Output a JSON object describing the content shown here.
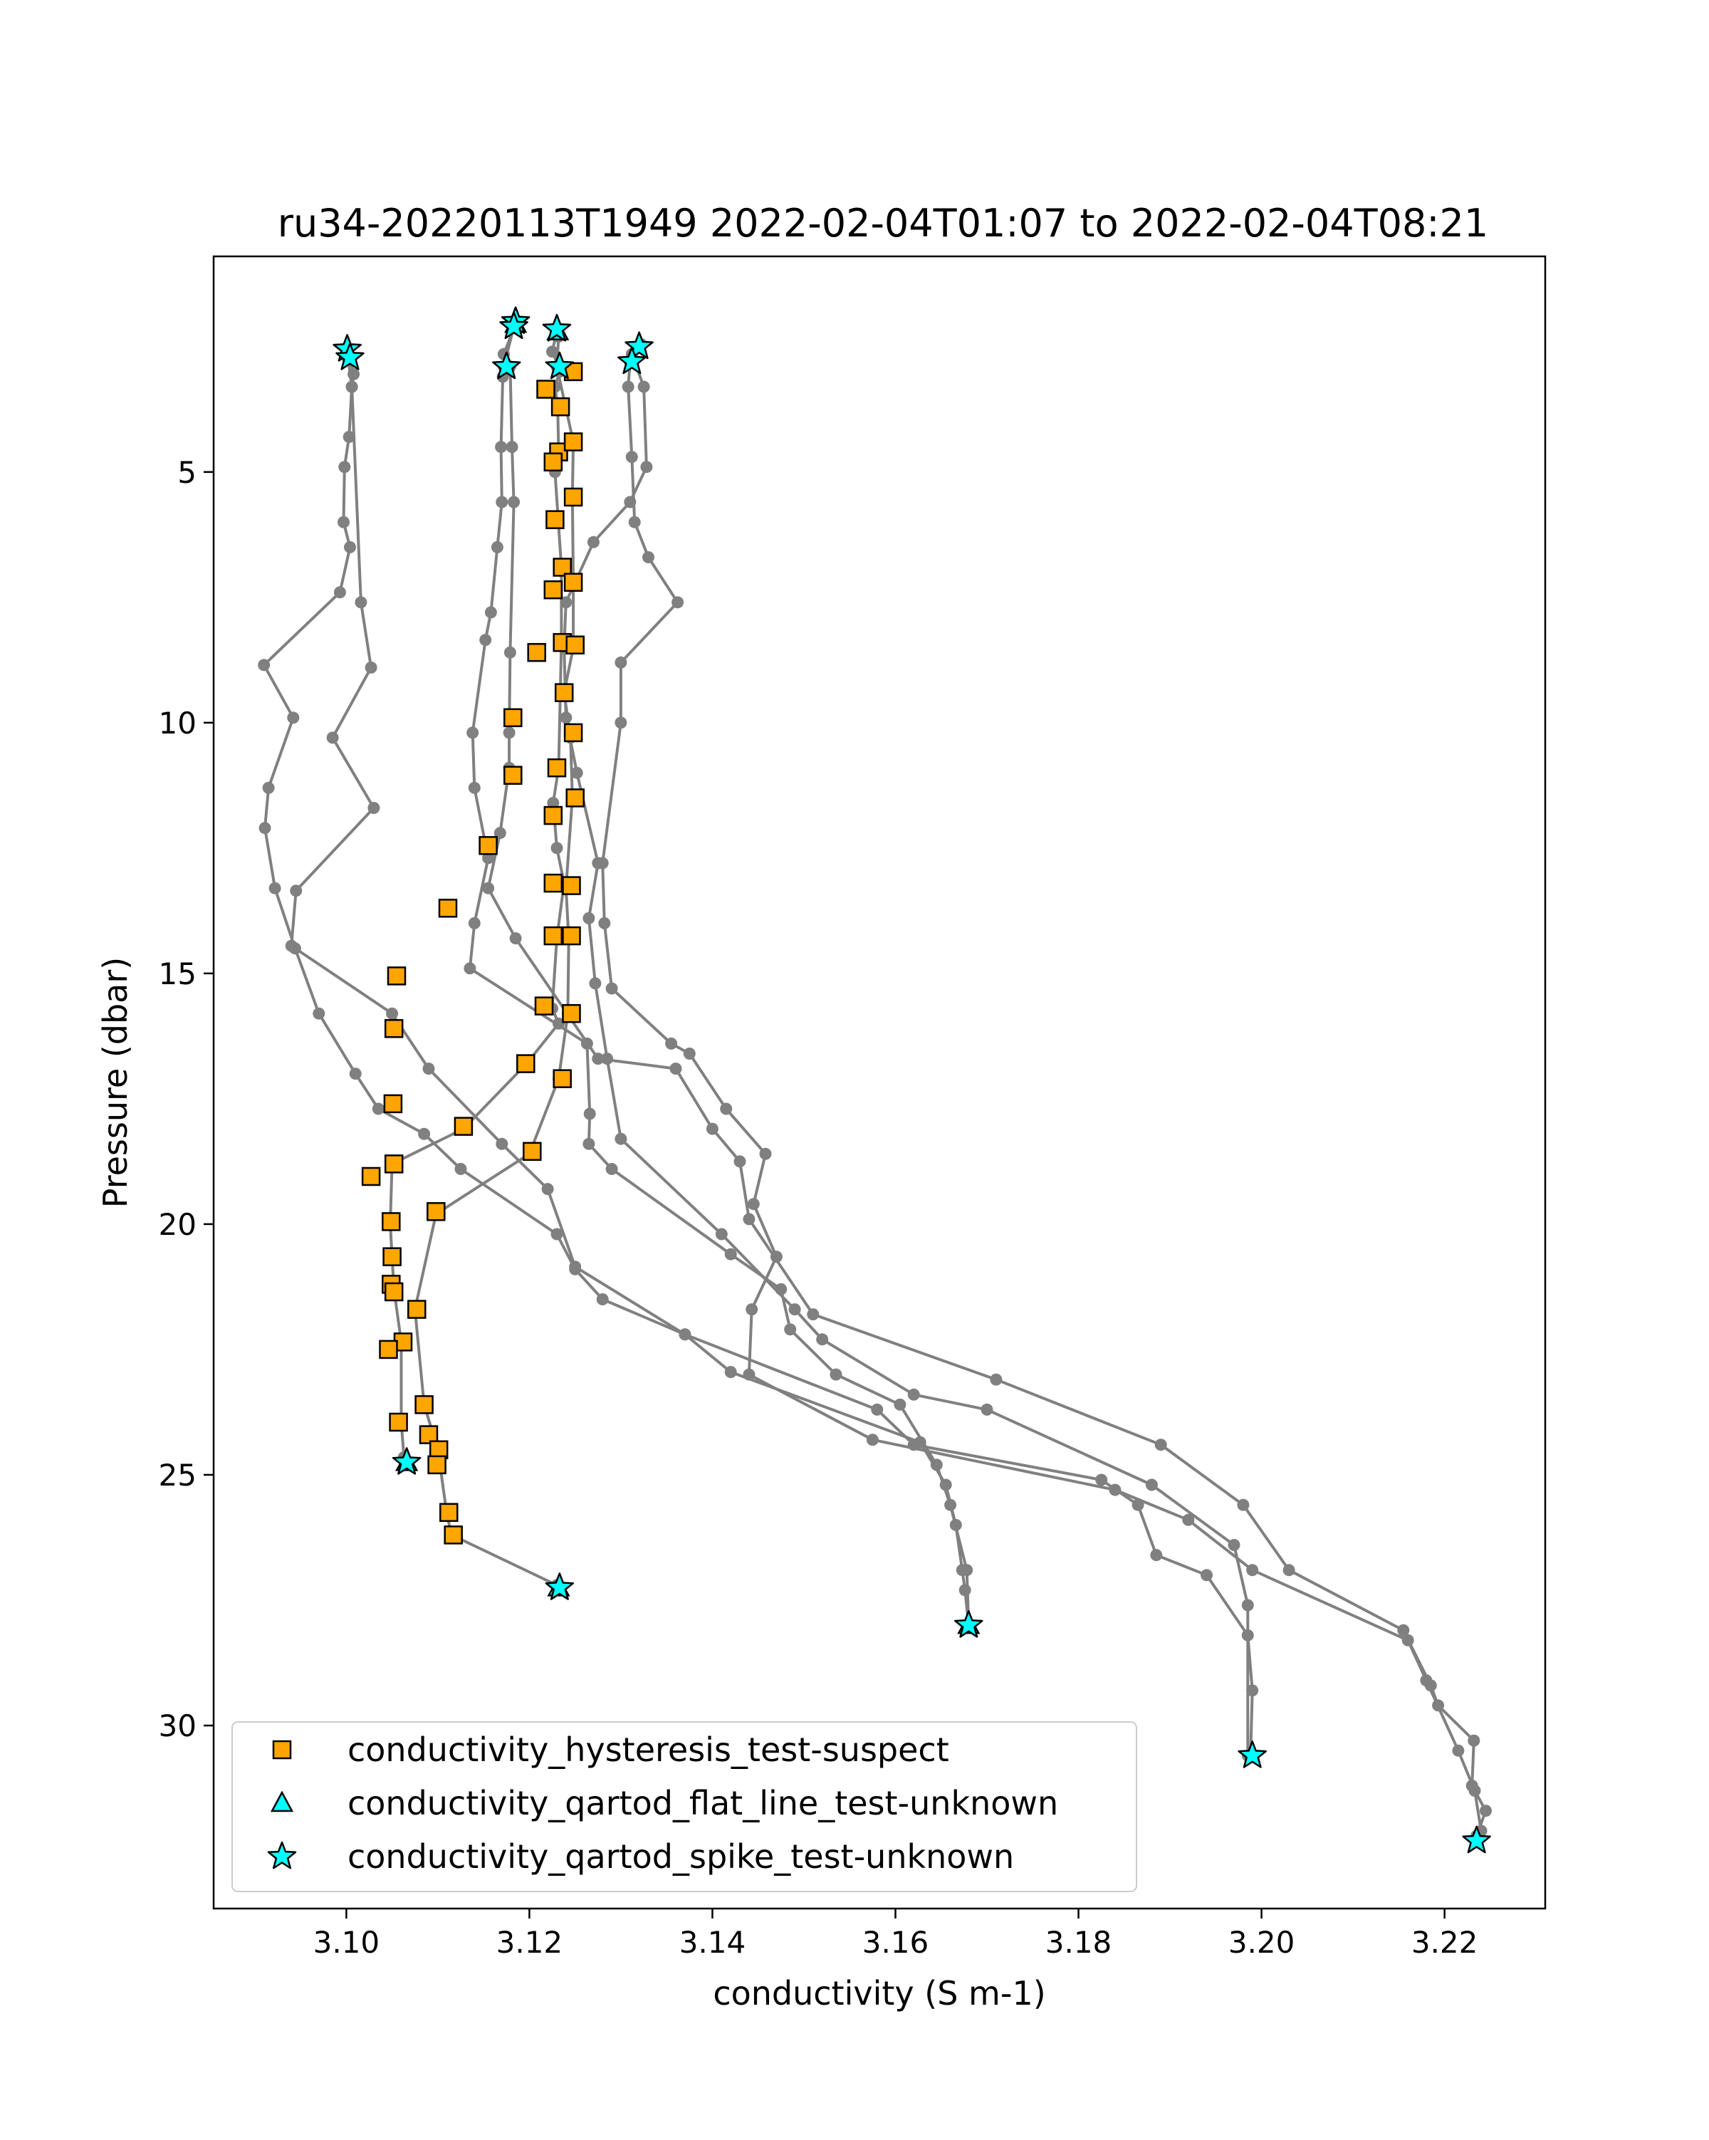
{
  "chart_data": {
    "type": "line",
    "title": "ru34-20220113T1949 2022-02-04T01:07 to 2022-02-04T08:21",
    "xlabel": "conductivity (S m-1)",
    "ylabel": "Pressure (dbar)",
    "xlim": [
      3.0855,
      3.231
    ],
    "ylim": [
      33.65,
      0.7
    ],
    "y_inverted": true,
    "grid": false,
    "legend_position": "lower left",
    "x_ticks": [
      {
        "value": 3.1,
        "label": "3.10"
      },
      {
        "value": 3.12,
        "label": "3.12"
      },
      {
        "value": 3.14,
        "label": "3.14"
      },
      {
        "value": 3.16,
        "label": "3.16"
      },
      {
        "value": 3.18,
        "label": "3.18"
      },
      {
        "value": 3.2,
        "label": "3.20"
      },
      {
        "value": 3.22,
        "label": "3.22"
      }
    ],
    "y_ticks": [
      {
        "value": 5,
        "label": "5"
      },
      {
        "value": 10,
        "label": "10"
      },
      {
        "value": 15,
        "label": "15"
      },
      {
        "value": 20,
        "label": "20"
      },
      {
        "value": 25,
        "label": "25"
      },
      {
        "value": 30,
        "label": "30"
      }
    ],
    "colors": {
      "profile_line": "#808080",
      "hysteresis_suspect": "#FFA500",
      "flat_line_unknown": "#00FFFF",
      "spike_unknown": "#00FFFF",
      "marker_edge": "#000000"
    },
    "profiles": [
      [
        [
          3.1001,
          2.55
        ],
        [
          3.1004,
          2.72
        ],
        [
          3.1008,
          3.05
        ],
        [
          3.1006,
          3.3
        ],
        [
          3.1003,
          4.3
        ],
        [
          3.0998,
          4.9
        ],
        [
          3.0997,
          6.0
        ],
        [
          3.1004,
          6.5
        ],
        [
          3.0993,
          7.4
        ],
        [
          3.091,
          8.85
        ],
        [
          3.0942,
          9.9
        ],
        [
          3.0915,
          11.3
        ],
        [
          3.0911,
          12.1
        ],
        [
          3.0922,
          13.3
        ],
        [
          3.0944,
          14.5
        ],
        [
          3.097,
          15.8
        ],
        [
          3.101,
          17.0
        ],
        [
          3.1035,
          17.7
        ],
        [
          3.1085,
          18.2
        ],
        [
          3.1125,
          18.9
        ],
        [
          3.123,
          20.2
        ],
        [
          3.125,
          20.9
        ],
        [
          3.128,
          21.5
        ],
        [
          3.137,
          22.2
        ],
        [
          3.142,
          22.95
        ],
        [
          3.1627,
          24.35
        ],
        [
          3.1655,
          25.2
        ],
        [
          3.1666,
          26.0
        ],
        [
          3.1673,
          26.9
        ],
        [
          3.1676,
          27.3
        ],
        [
          3.168,
          28.0
        ]
      ],
      [
        [
          3.1002,
          2.75
        ],
        [
          3.1006,
          3.3
        ],
        [
          3.1016,
          7.6
        ],
        [
          3.1027,
          8.9
        ],
        [
          3.0985,
          10.3
        ],
        [
          3.103,
          11.7
        ],
        [
          3.0945,
          13.35
        ],
        [
          3.094,
          14.45
        ],
        [
          3.105,
          15.8
        ],
        [
          3.109,
          16.9
        ],
        [
          3.117,
          18.4
        ],
        [
          3.122,
          19.3
        ],
        [
          3.125,
          20.85
        ],
        [
          3.137,
          22.2
        ],
        [
          3.158,
          23.7
        ],
        [
          3.162,
          24.4
        ],
        [
          3.1825,
          25.1
        ],
        [
          3.1865,
          25.6
        ],
        [
          3.1885,
          26.6
        ],
        [
          3.194,
          27.0
        ],
        [
          3.1985,
          28.2
        ],
        [
          3.199,
          29.3
        ],
        [
          3.1988,
          30.6
        ]
      ],
      [
        [
          3.1183,
          2.1
        ],
        [
          3.1172,
          2.9
        ],
        [
          3.1171,
          3.1
        ],
        [
          3.1169,
          4.5
        ],
        [
          3.117,
          5.6
        ],
        [
          3.1165,
          6.5
        ],
        [
          3.1158,
          7.8
        ],
        [
          3.1152,
          8.35
        ],
        [
          3.1138,
          10.2
        ],
        [
          3.114,
          11.3
        ],
        [
          3.1155,
          12.7
        ],
        [
          3.114,
          14.0
        ],
        [
          3.1135,
          14.9
        ],
        [
          3.1263,
          16.4
        ],
        [
          3.1266,
          17.8
        ],
        [
          3.1265,
          18.4
        ],
        [
          3.129,
          18.9
        ],
        [
          3.142,
          20.6
        ],
        [
          3.1475,
          21.3
        ],
        [
          3.1485,
          22.1
        ],
        [
          3.1535,
          23.0
        ],
        [
          3.1605,
          23.6
        ],
        [
          3.1645,
          24.8
        ],
        [
          3.166,
          25.6
        ],
        [
          3.1678,
          26.9
        ],
        [
          3.168,
          28.0
        ]
      ],
      [
        [
          3.1185,
          2.05
        ],
        [
          3.1172,
          2.65
        ],
        [
          3.1179,
          2.9
        ],
        [
          3.1181,
          4.5
        ],
        [
          3.1183,
          5.6
        ],
        [
          3.1179,
          8.6
        ],
        [
          3.1178,
          10.2
        ],
        [
          3.1178,
          10.9
        ],
        [
          3.1168,
          12.2
        ],
        [
          3.1155,
          13.3
        ],
        [
          3.1185,
          14.3
        ],
        [
          3.1275,
          16.7
        ],
        [
          3.136,
          16.9
        ],
        [
          3.14,
          18.1
        ],
        [
          3.143,
          18.75
        ],
        [
          3.144,
          19.9
        ],
        [
          3.151,
          21.8
        ],
        [
          3.171,
          23.1
        ],
        [
          3.189,
          24.4
        ],
        [
          3.198,
          25.6
        ],
        [
          3.203,
          26.9
        ],
        [
          3.2155,
          28.1
        ],
        [
          3.2185,
          29.2
        ],
        [
          3.2193,
          29.6
        ],
        [
          3.2232,
          30.3
        ],
        [
          3.223,
          31.2
        ],
        [
          3.2245,
          31.7
        ],
        [
          3.2235,
          32.2
        ]
      ],
      [
        [
          3.123,
          2.2
        ],
        [
          3.1225,
          2.6
        ],
        [
          3.1232,
          2.9
        ],
        [
          3.1233,
          3.0
        ],
        [
          3.1228,
          3.3
        ],
        [
          3.1231,
          3.7
        ],
        [
          3.1232,
          4.6
        ],
        [
          3.1228,
          5.0
        ],
        [
          3.1235,
          6.9
        ],
        [
          3.1235,
          8.4
        ],
        [
          3.1232,
          10.9
        ],
        [
          3.1226,
          11.6
        ],
        [
          3.123,
          12.5
        ],
        [
          3.1238,
          13.2
        ],
        [
          3.123,
          14.3
        ],
        [
          3.1225,
          15.7
        ],
        [
          3.1232,
          16.0
        ],
        [
          3.1197,
          16.8
        ],
        [
          3.1128,
          18.1
        ],
        [
          3.105,
          18.8
        ],
        [
          3.1048,
          20.0
        ],
        [
          3.1052,
          21.3
        ],
        [
          3.106,
          22.35
        ],
        [
          3.106,
          23.95
        ],
        [
          3.1063,
          24.65
        ],
        [
          3.1065,
          24.8
        ]
      ],
      [
        [
          3.1232,
          2.3
        ],
        [
          3.123,
          2.9
        ],
        [
          3.1248,
          4.4
        ],
        [
          3.1247,
          5.5
        ],
        [
          3.1248,
          7.2
        ],
        [
          3.1248,
          8.5
        ],
        [
          3.1238,
          9.4
        ],
        [
          3.1245,
          10.3
        ],
        [
          3.1247,
          11.5
        ],
        [
          3.124,
          13.3
        ],
        [
          3.1243,
          14.3
        ],
        [
          3.1242,
          15.8
        ],
        [
          3.1232,
          17.1
        ],
        [
          3.12,
          18.6
        ],
        [
          3.1098,
          19.8
        ],
        [
          3.1075,
          21.7
        ],
        [
          3.1085,
          23.6
        ],
        [
          3.11,
          24.5
        ],
        [
          3.111,
          25.8
        ],
        [
          3.1115,
          26.2
        ],
        [
          3.123,
          27.2
        ]
      ],
      [
        [
          3.132,
          2.5
        ],
        [
          3.131,
          2.8
        ],
        [
          3.1308,
          3.3
        ],
        [
          3.1312,
          4.7
        ],
        [
          3.1315,
          6.0
        ],
        [
          3.133,
          6.7
        ],
        [
          3.1362,
          7.6
        ],
        [
          3.13,
          8.8
        ],
        [
          3.13,
          10.0
        ],
        [
          3.128,
          12.8
        ],
        [
          3.1282,
          14.0
        ],
        [
          3.129,
          15.3
        ],
        [
          3.1355,
          16.4
        ],
        [
          3.1375,
          16.6
        ],
        [
          3.1415,
          17.7
        ],
        [
          3.1458,
          18.6
        ],
        [
          3.1445,
          19.6
        ],
        [
          3.147,
          20.65
        ],
        [
          3.1443,
          21.7
        ],
        [
          3.144,
          23.0
        ],
        [
          3.1575,
          24.3
        ],
        [
          3.184,
          25.3
        ],
        [
          3.192,
          25.9
        ],
        [
          3.199,
          26.9
        ],
        [
          3.216,
          28.3
        ],
        [
          3.218,
          29.1
        ],
        [
          3.2215,
          30.5
        ],
        [
          3.2233,
          31.3
        ],
        [
          3.224,
          32.1
        ],
        [
          3.2235,
          32.3
        ]
      ],
      [
        [
          3.1322,
          2.45
        ],
        [
          3.1312,
          2.65
        ],
        [
          3.1325,
          3.3
        ],
        [
          3.1328,
          4.9
        ],
        [
          3.131,
          5.6
        ],
        [
          3.127,
          6.4
        ],
        [
          3.124,
          7.6
        ],
        [
          3.1238,
          8.5
        ],
        [
          3.124,
          9.9
        ],
        [
          3.1252,
          11.0
        ],
        [
          3.1275,
          12.8
        ],
        [
          3.1265,
          13.9
        ],
        [
          3.1272,
          15.2
        ],
        [
          3.1285,
          16.7
        ],
        [
          3.13,
          18.3
        ],
        [
          3.141,
          20.2
        ],
        [
          3.149,
          21.7
        ],
        [
          3.152,
          22.3
        ],
        [
          3.162,
          23.4
        ],
        [
          3.17,
          23.7
        ],
        [
          3.188,
          25.2
        ],
        [
          3.197,
          26.4
        ],
        [
          3.1985,
          27.6
        ],
        [
          3.1985,
          30.6
        ]
      ]
    ],
    "series": [
      {
        "name": "conductivity_hysteresis_test-suspect",
        "marker": "square",
        "color": "#FFA500",
        "points": [
          [
            3.1218,
            3.35
          ],
          [
            3.1248,
            3.0
          ],
          [
            3.1234,
            3.7
          ],
          [
            3.1232,
            4.6
          ],
          [
            3.1248,
            4.4
          ],
          [
            3.1226,
            4.8
          ],
          [
            3.1248,
            5.5
          ],
          [
            3.1228,
            5.95
          ],
          [
            3.1236,
            6.9
          ],
          [
            3.1248,
            7.2
          ],
          [
            3.1226,
            7.35
          ],
          [
            3.1236,
            8.4
          ],
          [
            3.125,
            8.45
          ],
          [
            3.1208,
            8.6
          ],
          [
            3.1238,
            9.4
          ],
          [
            3.1248,
            10.2
          ],
          [
            3.1182,
            9.9
          ],
          [
            3.123,
            10.9
          ],
          [
            3.1182,
            11.05
          ],
          [
            3.125,
            11.5
          ],
          [
            3.1226,
            11.85
          ],
          [
            3.1155,
            12.45
          ],
          [
            3.1226,
            13.2
          ],
          [
            3.1246,
            13.25
          ],
          [
            3.1111,
            13.7
          ],
          [
            3.1226,
            14.25
          ],
          [
            3.1246,
            14.25
          ],
          [
            3.1055,
            15.05
          ],
          [
            3.1216,
            15.65
          ],
          [
            3.1246,
            15.8
          ],
          [
            3.1052,
            16.1
          ],
          [
            3.1196,
            16.8
          ],
          [
            3.1236,
            17.1
          ],
          [
            3.1051,
            17.6
          ],
          [
            3.1128,
            18.05
          ],
          [
            3.1203,
            18.55
          ],
          [
            3.1052,
            18.8
          ],
          [
            3.1027,
            19.05
          ],
          [
            3.1098,
            19.75
          ],
          [
            3.1049,
            19.95
          ],
          [
            3.105,
            20.65
          ],
          [
            3.1049,
            21.2
          ],
          [
            3.1052,
            21.35
          ],
          [
            3.1077,
            21.7
          ],
          [
            3.1062,
            22.35
          ],
          [
            3.1046,
            22.5
          ],
          [
            3.1085,
            23.6
          ],
          [
            3.1057,
            23.95
          ],
          [
            3.109,
            24.2
          ],
          [
            3.1101,
            24.5
          ],
          [
            3.1099,
            24.8
          ],
          [
            3.1112,
            25.75
          ],
          [
            3.1117,
            26.2
          ]
        ]
      },
      {
        "name": "conductivity_qartod_flat_line_test-unknown",
        "marker": "triangle",
        "color": "#00FFFF",
        "points": [
          [
            3.1185,
            2.05
          ],
          [
            3.1231,
            2.2
          ],
          [
            3.1232,
            27.25
          ],
          [
            3.1066,
            24.75
          ],
          [
            3.168,
            28.0
          ]
        ]
      },
      {
        "name": "conductivity_qartod_spike_test-unknown",
        "marker": "star",
        "color": "#00FFFF",
        "points": [
          [
            3.1001,
            2.55
          ],
          [
            3.1004,
            2.72
          ],
          [
            3.1185,
            2.0
          ],
          [
            3.1183,
            2.1
          ],
          [
            3.123,
            2.15
          ],
          [
            3.1233,
            2.9
          ],
          [
            3.1175,
            2.9
          ],
          [
            3.132,
            2.5
          ],
          [
            3.1312,
            2.8
          ],
          [
            3.1066,
            24.75
          ],
          [
            3.1233,
            27.25
          ],
          [
            3.168,
            28.0
          ],
          [
            3.199,
            30.6
          ],
          [
            3.2235,
            32.3
          ]
        ]
      }
    ]
  }
}
